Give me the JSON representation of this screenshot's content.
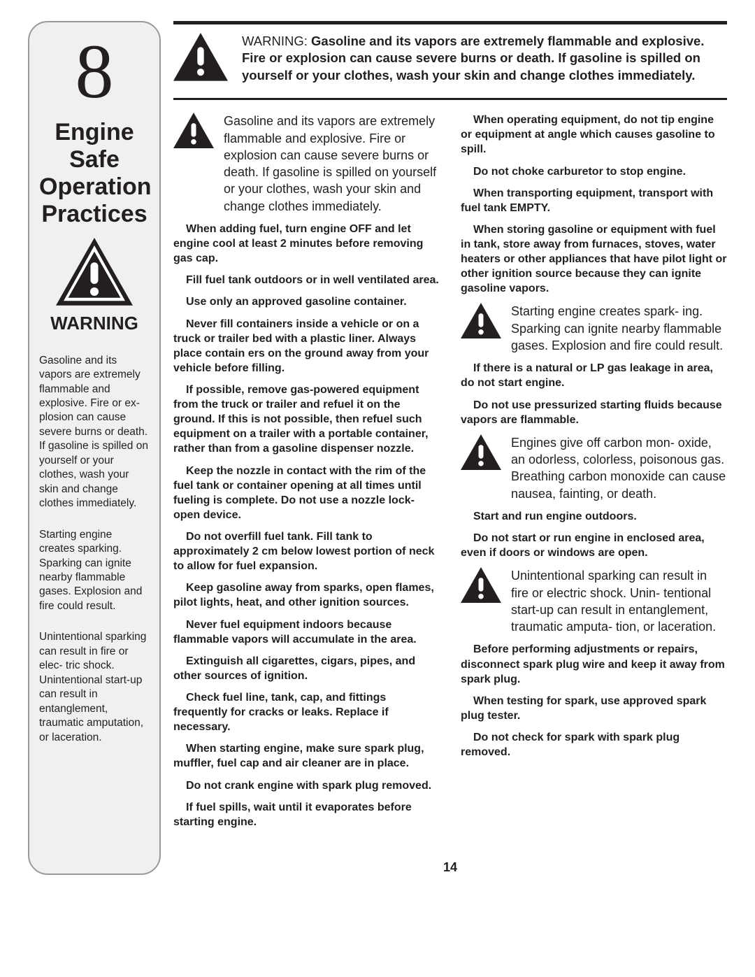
{
  "sidebar": {
    "section_number": "8",
    "title": "Engine Safe Operation Practices",
    "warning_label": "WARNING",
    "paras": [
      "Gasoline and its vapors are extremely flammable and explosive. Fire or ex­- plosion can cause severe burns or death. If gasoline is spilled on yourself or your clothes, wash your skin and change clothes immediately.",
      "Starting engine creates sparking. Sparking can ignite nearby flammable gases. Explosion and fire could result.",
      "Unintentional sparking can result in fire or elec­- tric shock. Unintentional start-up can result in entanglement, traumatic amputation, or laceration."
    ]
  },
  "hero": {
    "prefix": "WARNING: ",
    "bold": "Gasoline and its vapors are extremely flammable and explosive. Fire or explosion can cause severe burns or death. If gasoline is spilled on yourself or your clothes, wash your skin and change clothes immediately."
  },
  "left_col": {
    "intro": "Gasoline and its vapors are extremely flammable and explosive. Fire or explosion can cause severe burns or death. If gasoline is spilled on yourself or your clothes, wash your skin and change clothes immediately.",
    "items": [
      "When adding fuel, turn engine OFF and let engine cool at least 2 minutes before removing gas cap.",
      "Fill fuel tank outdoors or in well ventilated area.",
      "Use only an approved gasoline container.",
      "Never fill containers inside a vehicle or on a truck or trailer bed with a plastic liner. Always place contain­ ers on the ground away from your vehicle before filling.",
      "If possible, remove gas-powered equipment from the truck or trailer and refuel it on the ground. If this is not possible, then refuel such equipment on a trailer with a portable container, rather than from a gasoline dispenser nozzle.",
      "Keep the nozzle in contact with the rim of the fuel tank or container opening at all times until fueling is complete. Do not use a nozzle lock-open device.",
      "Do not overfill fuel tank. Fill tank to approximately 2 cm below lowest portion of neck to allow for fuel expansion.",
      "Keep gasoline away from sparks, open flames, pilot lights, heat, and other ignition sources.",
      "Never fuel equipment indoors because flammable vapors will accumulate in the area.",
      "Extinguish all cigarettes, cigars, pipes, and other sources of ignition.",
      "Check fuel line, tank, cap, and fittings frequently for cracks or leaks. Replace if necessary.",
      "When starting engine, make sure spark plug, muffler, fuel cap and air cleaner are in place.",
      "Do not crank engine with spark plug removed.",
      "If fuel spills, wait until it evaporates before starting engine."
    ]
  },
  "right_col": {
    "block1_items": [
      "When operating equipment, do not tip engine or equipment at angle which causes gasoline to spill.",
      "Do not choke carburetor to stop engine.",
      "When transporting equipment, transport with fuel tank EMPTY.",
      "When storing gasoline or equipment with fuel in tank, store away from furnaces, stoves, water heaters or other appliances that have pilot light or other ignition source because they can ignite gasoline vapors."
    ],
    "spark_intro": "Starting engine creates spark­- ing. Sparking can ignite nearby flammable gases. Explosion and fire could result.",
    "block2_items": [
      "If there is a natural or LP gas leakage in area, do not start engine.",
      "Do not use pressurized starting fluids because vapors are flammable."
    ],
    "co_intro": "Engines give off carbon mon­- oxide, an odorless, colorless, poisonous gas. Breathing carbon monoxide can cause nausea, fainting, or death.",
    "block3_items": [
      "Start and run engine outdoors.",
      "Do not start or run engine in enclosed area, even if doors or windows are open."
    ],
    "unint_intro": "Unintentional sparking can result in fire or electric shock. Unin­- tentional start-up can result in entanglement, traumatic amputa­- tion, or laceration.",
    "block4_items": [
      "Before performing adjustments or repairs, disconnect spark plug wire and keep it away from spark plug.",
      "When testing for spark, use approved spark plug tester.",
      "Do not check for spark with spark plug removed."
    ]
  },
  "page_number": "14",
  "colors": {
    "text": "#231f20",
    "sidebar_bg": "#f0f0f0",
    "sidebar_border": "#999999",
    "rule": "#231f20",
    "icon_fill": "#231f20",
    "background": "#ffffff"
  },
  "typography": {
    "body_font": "Arial",
    "number_font": "Times New Roman",
    "number_size_pt": 82,
    "title_size_pt": 25,
    "warning_label_pt": 20,
    "sidebar_text_pt": 11.5,
    "hero_text_pt": 14,
    "intro_text_pt": 13.5,
    "bold_para_pt": 12
  }
}
